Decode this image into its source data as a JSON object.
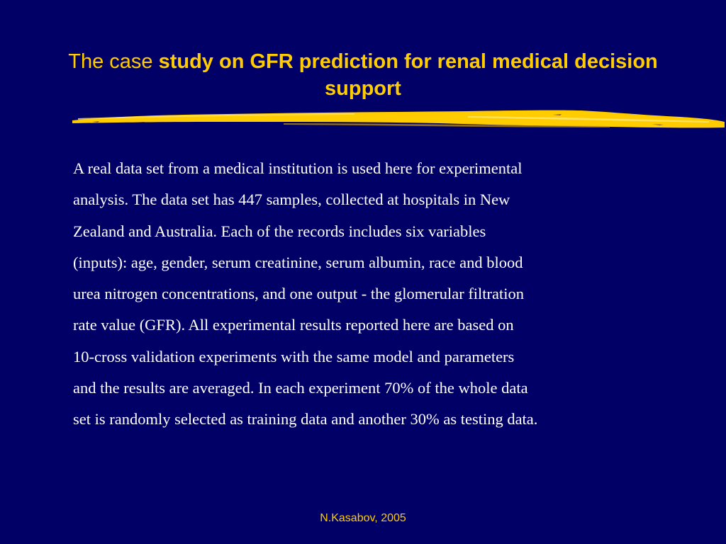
{
  "slide": {
    "title_plain": "The case ",
    "title_bold": "study on GFR prediction for renal medical decision support",
    "body_lines": [
      "A real data set from a medical institution is used here for experimental",
      "analysis. The data set has 447 samples, collected at hospitals in New",
      "Zealand and Australia. Each of the records includes six variables",
      "(inputs): age, gender, serum creatinine, serum albumin, race and blood",
      "urea nitrogen concentrations, and one output - the glomerular filtration",
      "rate value (GFR). All experimental results reported here are based on",
      "10-cross validation experiments with the same model and parameters",
      "and the results are averaged. In each experiment 70% of the whole data",
      "set is randomly selected as training data and another 30% as testing data."
    ],
    "footer": "N.Kasabov, 2005"
  },
  "colors": {
    "background": "#000066",
    "accent": "#FFCC00",
    "text": "#FFFFFF"
  }
}
